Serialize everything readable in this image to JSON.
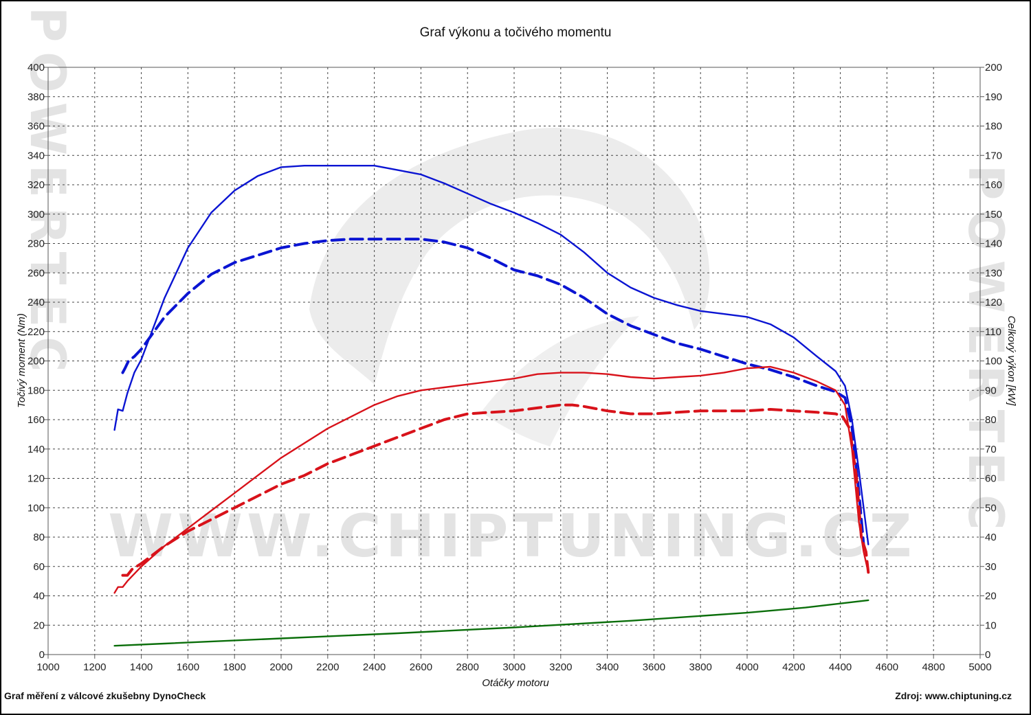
{
  "chart_data": {
    "type": "line",
    "title": "Graf výkonu a točivého momentu",
    "xlabel": "Otáčky motoru",
    "ylabel_left": "Točivý moment (Nm)",
    "ylabel_right": "Celkový výkon [kW]",
    "xlim": [
      1000,
      5000
    ],
    "xticks": [
      1000,
      1200,
      1400,
      1600,
      1800,
      2000,
      2200,
      2400,
      2600,
      2800,
      3000,
      3200,
      3400,
      3600,
      3800,
      4000,
      4200,
      4400,
      4600,
      4800,
      5000
    ],
    "ylim_left": [
      0,
      400
    ],
    "yticks_left": [
      0,
      20,
      40,
      60,
      80,
      100,
      120,
      140,
      160,
      180,
      200,
      220,
      240,
      260,
      280,
      300,
      320,
      340,
      360,
      380,
      400
    ],
    "ylim_right": [
      0,
      200
    ],
    "yticks_right": [
      0,
      10,
      20,
      30,
      40,
      50,
      60,
      70,
      80,
      90,
      100,
      110,
      120,
      130,
      140,
      150,
      160,
      170,
      180,
      190,
      200
    ],
    "grid": true,
    "series": [
      {
        "axis": "left",
        "color": "#0a14d2",
        "dash": false,
        "x": [
          1285,
          1300,
          1320,
          1340,
          1370,
          1400,
          1500,
          1600,
          1700,
          1800,
          1900,
          2000,
          2100,
          2200,
          2300,
          2350,
          2400,
          2500,
          2600,
          2700,
          2800,
          2900,
          3000,
          3100,
          3200,
          3300,
          3400,
          3500,
          3600,
          3700,
          3800,
          3900,
          4000,
          4100,
          4200,
          4300,
          4380,
          4420,
          4450,
          4480,
          4500,
          4520
        ],
        "y": [
          153,
          167,
          166,
          178,
          192,
          201,
          243,
          277,
          301,
          316,
          326,
          332,
          333,
          333,
          333,
          333,
          333,
          330,
          327,
          321,
          314,
          307,
          301,
          294,
          286,
          274,
          260,
          250,
          243,
          238,
          234,
          232,
          230,
          225,
          216,
          203,
          193,
          183,
          160,
          125,
          100,
          75
        ]
      },
      {
        "axis": "left",
        "color": "#0a14d2",
        "dash": true,
        "x": [
          1320,
          1330,
          1345,
          1370,
          1400,
          1450,
          1500,
          1600,
          1700,
          1800,
          1900,
          2000,
          2100,
          2200,
          2300,
          2400,
          2500,
          2600,
          2700,
          2800,
          2900,
          3000,
          3100,
          3200,
          3300,
          3400,
          3500,
          3600,
          3700,
          3800,
          3900,
          4000,
          4100,
          4200,
          4300,
          4380,
          4420,
          4450,
          4480,
          4500
        ],
        "y": [
          192,
          195,
          200,
          203,
          208,
          219,
          230,
          246,
          259,
          267,
          272,
          277,
          280,
          282,
          283,
          283,
          283,
          283,
          281,
          277,
          270,
          262,
          258,
          252,
          243,
          232,
          224,
          218,
          212,
          208,
          203,
          198,
          194,
          189,
          183,
          179,
          175,
          155,
          110,
          75
        ]
      },
      {
        "axis": "right",
        "color": "#d8121a",
        "dash": false,
        "x": [
          1285,
          1300,
          1320,
          1340,
          1400,
          1500,
          1600,
          1700,
          1800,
          1900,
          2000,
          2100,
          2200,
          2300,
          2400,
          2500,
          2600,
          2700,
          2800,
          2900,
          3000,
          3100,
          3200,
          3300,
          3400,
          3500,
          3600,
          3700,
          3800,
          3900,
          4000,
          4100,
          4200,
          4300,
          4380,
          4420,
          4450,
          4480,
          4500,
          4520
        ],
        "y": [
          21,
          23,
          23,
          25,
          30,
          37,
          43,
          49,
          55,
          61,
          67,
          72,
          77,
          81,
          85,
          88,
          90,
          91,
          92,
          93,
          94,
          95.5,
          96,
          96,
          95.5,
          94.5,
          94,
          94.5,
          95,
          96,
          97.5,
          98,
          96,
          93,
          90,
          85,
          70,
          45,
          35,
          28
        ]
      },
      {
        "axis": "right",
        "color": "#d8121a",
        "dash": true,
        "x": [
          1320,
          1340,
          1360,
          1400,
          1450,
          1500,
          1600,
          1700,
          1800,
          1900,
          2000,
          2100,
          2200,
          2300,
          2400,
          2500,
          2600,
          2700,
          2800,
          2900,
          3000,
          3100,
          3200,
          3250,
          3300,
          3400,
          3500,
          3600,
          3700,
          3800,
          3900,
          4000,
          4100,
          4200,
          4300,
          4380,
          4410,
          4440,
          4470,
          4490,
          4510,
          4520
        ],
        "y": [
          27,
          27,
          29,
          31,
          34,
          37,
          42,
          46,
          50,
          54,
          58,
          61,
          65,
          68,
          71,
          74,
          77,
          80,
          82,
          82.5,
          83,
          84,
          85,
          85,
          84.5,
          83,
          82,
          82,
          82.5,
          83,
          83,
          83,
          83.5,
          83,
          82.5,
          82,
          81,
          77,
          60,
          40,
          35,
          28
        ]
      },
      {
        "axis": "left",
        "color": "#0a6e0a",
        "dash": false,
        "x": [
          1285,
          1500,
          2000,
          2500,
          3000,
          3500,
          4000,
          4250,
          4520
        ],
        "y": [
          6,
          7.5,
          11,
          14.5,
          18.5,
          23,
          28.5,
          32,
          37
        ]
      }
    ]
  },
  "watermark": {
    "url": "WWW.CHIPTUNING.CZ",
    "brand": "POWERTEC"
  },
  "footer": {
    "left": "Graf měření z válcové zkušebny DynoCheck",
    "right": "Zdroj: www.chiptuning.cz"
  }
}
